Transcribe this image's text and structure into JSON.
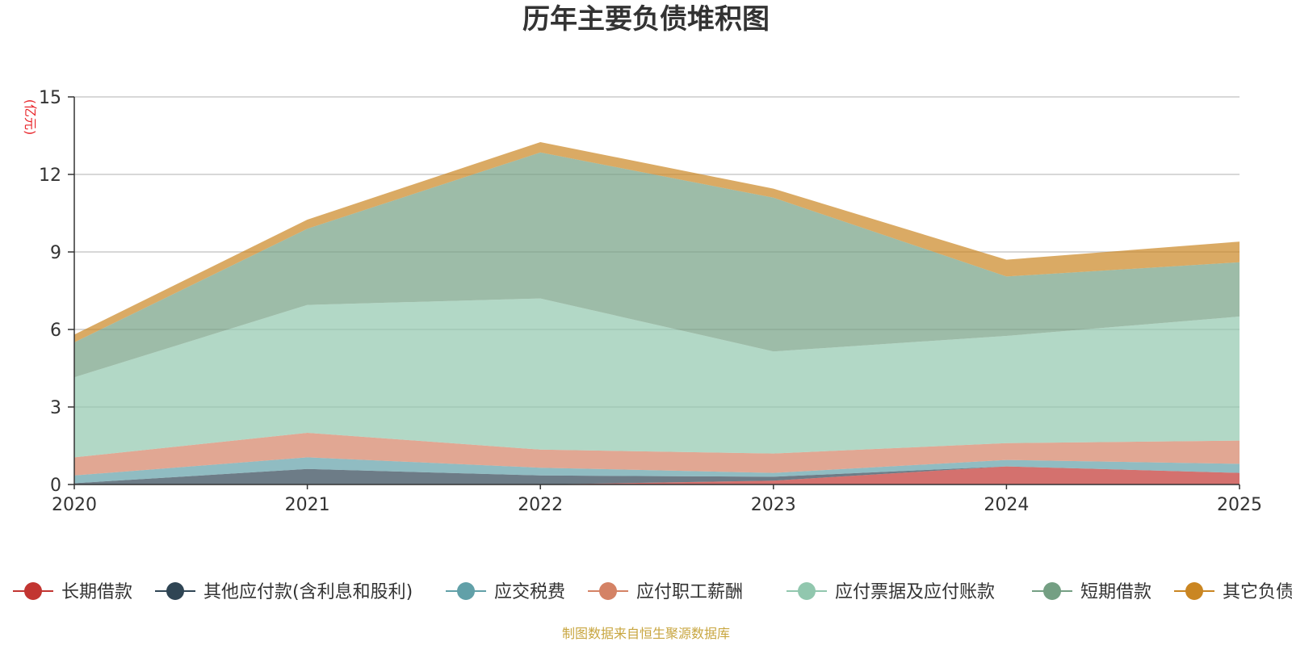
{
  "chart_data": {
    "type": "area",
    "stacked": true,
    "title": "历年主要负债堆积图",
    "ylabel": "(亿元)",
    "xlabel": "",
    "x": [
      "2020",
      "2021",
      "2022",
      "2023",
      "2024",
      "2025"
    ],
    "ylim": [
      0,
      15
    ],
    "yticks": [
      "0",
      "3",
      "6",
      "9",
      "12",
      "15"
    ],
    "grid": true,
    "legend_position": "bottom",
    "series": [
      {
        "name": "长期借款",
        "color": "#c23531",
        "values": [
          0.0,
          0.0,
          0.0,
          0.15,
          0.7,
          0.45
        ]
      },
      {
        "name": "其他应付款(含利息和股利)",
        "color": "#2f4554",
        "values": [
          0.05,
          0.6,
          0.35,
          0.15,
          0.0,
          0.0
        ]
      },
      {
        "name": "应交税费",
        "color": "#61a0a8",
        "values": [
          0.3,
          0.45,
          0.3,
          0.15,
          0.25,
          0.35
        ]
      },
      {
        "name": "应付职工薪酬",
        "color": "#d48265",
        "values": [
          0.7,
          0.95,
          0.7,
          0.75,
          0.65,
          0.9
        ]
      },
      {
        "name": "应付票据及应付账款",
        "color": "#91c7ae",
        "values": [
          3.1,
          4.95,
          5.85,
          3.95,
          4.15,
          4.8
        ]
      },
      {
        "name": "短期借款",
        "color": "#749f83",
        "values": [
          1.35,
          2.95,
          5.65,
          5.95,
          2.3,
          2.1
        ]
      },
      {
        "name": "其它负债",
        "color": "#ca8622",
        "values": [
          0.3,
          0.35,
          0.4,
          0.35,
          0.65,
          0.8
        ]
      }
    ],
    "source_note": "制图数据来自恒生聚源数据库",
    "source_color": "#c8a640",
    "unit_color": "#e8262b"
  }
}
